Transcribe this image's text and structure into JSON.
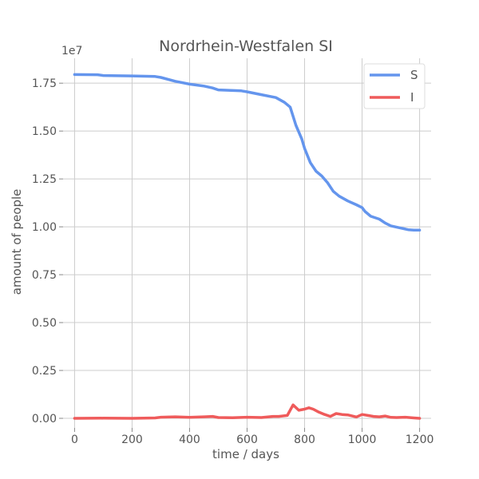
{
  "chart_data": {
    "type": "line",
    "title": "Nordrhein-Westfalen SI",
    "xlabel": "time / days",
    "ylabel": "amount of people",
    "y_multiplier_label": "1e7",
    "xlim": [
      -40,
      1240
    ],
    "ylim": [
      -0.05,
      1.88
    ],
    "x_ticks": [
      0,
      200,
      400,
      600,
      800,
      1000,
      1200
    ],
    "x_tick_labels": [
      "0",
      "200",
      "400",
      "600",
      "800",
      "1000",
      "1200"
    ],
    "y_ticks": [
      0.0,
      0.25,
      0.5,
      0.75,
      1.0,
      1.25,
      1.5,
      1.75
    ],
    "y_tick_labels": [
      "0.00",
      "0.25",
      "0.50",
      "0.75",
      "1.00",
      "1.25",
      "1.50",
      "1.75"
    ],
    "grid": true,
    "legend_position": "top-right",
    "series": [
      {
        "name": "S",
        "color": "#6495ED",
        "x": [
          0,
          80,
          100,
          200,
          280,
          300,
          350,
          400,
          450,
          480,
          500,
          580,
          600,
          650,
          700,
          730,
          750,
          770,
          790,
          800,
          820,
          840,
          860,
          880,
          900,
          920,
          950,
          980,
          1000,
          1010,
          1030,
          1060,
          1080,
          1100,
          1130,
          1160,
          1180,
          1200
        ],
        "y": [
          1.795,
          1.794,
          1.79,
          1.788,
          1.785,
          1.78,
          1.76,
          1.745,
          1.735,
          1.725,
          1.715,
          1.71,
          1.705,
          1.69,
          1.675,
          1.65,
          1.625,
          1.53,
          1.46,
          1.41,
          1.335,
          1.29,
          1.265,
          1.23,
          1.185,
          1.16,
          1.135,
          1.115,
          1.1,
          1.08,
          1.055,
          1.04,
          1.02,
          1.005,
          0.995,
          0.985,
          0.983,
          0.983
        ]
      },
      {
        "name": "I",
        "color": "#EF5B5B",
        "x": [
          0,
          100,
          200,
          280,
          300,
          350,
          400,
          450,
          480,
          500,
          550,
          600,
          650,
          690,
          710,
          740,
          760,
          780,
          800,
          815,
          830,
          850,
          870,
          890,
          910,
          930,
          950,
          980,
          1000,
          1020,
          1040,
          1060,
          1080,
          1100,
          1120,
          1150,
          1180,
          1200
        ],
        "y": [
          0.0,
          0.001,
          0.0,
          0.002,
          0.006,
          0.008,
          0.005,
          0.008,
          0.01,
          0.004,
          0.003,
          0.006,
          0.004,
          0.01,
          0.01,
          0.015,
          0.07,
          0.042,
          0.048,
          0.055,
          0.048,
          0.032,
          0.02,
          0.01,
          0.025,
          0.02,
          0.018,
          0.007,
          0.02,
          0.015,
          0.01,
          0.008,
          0.012,
          0.005,
          0.004,
          0.006,
          0.002,
          0.0
        ]
      }
    ]
  }
}
